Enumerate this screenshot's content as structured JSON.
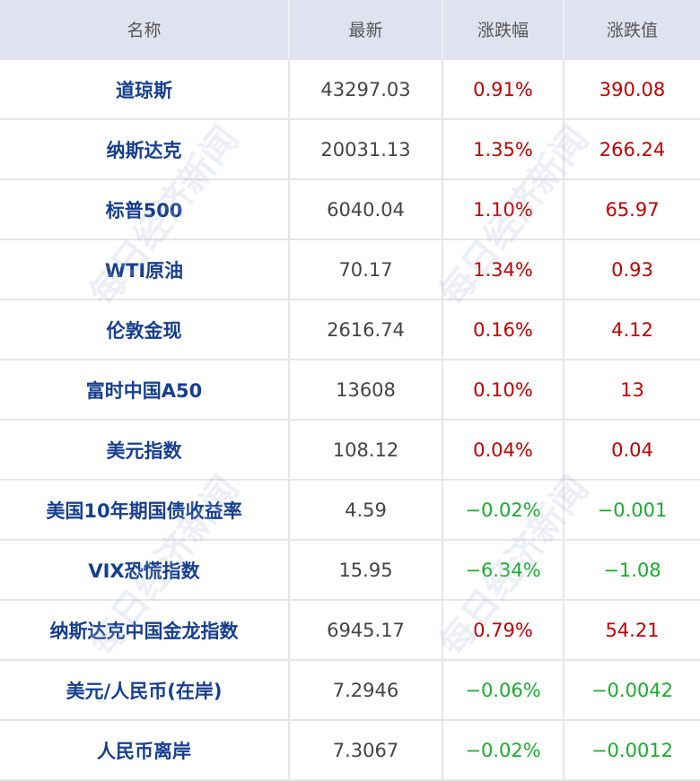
{
  "watermark": "每日经济新闻",
  "colors": {
    "header_bg": "#dfe3f0",
    "name": "#173f8f",
    "up": "#c00000",
    "down": "#1aac2e"
  },
  "headers": [
    "名称",
    "最新",
    "涨跌幅",
    "涨跌值"
  ],
  "rows": [
    {
      "name": "道琼斯",
      "last": "43297.03",
      "pct": "0.91%",
      "chg": "390.08",
      "dir": "up"
    },
    {
      "name": "纳斯达克",
      "last": "20031.13",
      "pct": "1.35%",
      "chg": "266.24",
      "dir": "up"
    },
    {
      "name": "标普500",
      "last": "6040.04",
      "pct": "1.10%",
      "chg": "65.97",
      "dir": "up"
    },
    {
      "name": "WTI原油",
      "last": "70.17",
      "pct": "1.34%",
      "chg": "0.93",
      "dir": "up"
    },
    {
      "name": "伦敦金现",
      "last": "2616.74",
      "pct": "0.16%",
      "chg": "4.12",
      "dir": "up"
    },
    {
      "name": "富时中国A50",
      "last": "13608",
      "pct": "0.10%",
      "chg": "13",
      "dir": "up"
    },
    {
      "name": "美元指数",
      "last": "108.12",
      "pct": "0.04%",
      "chg": "0.04",
      "dir": "up"
    },
    {
      "name": "美国10年期国债收益率",
      "last": "4.59",
      "pct": "−0.02%",
      "chg": "−0.001",
      "dir": "down"
    },
    {
      "name": "VIX恐慌指数",
      "last": "15.95",
      "pct": "−6.34%",
      "chg": "−1.08",
      "dir": "down"
    },
    {
      "name": "纳斯达克中国金龙指数",
      "last": "6945.17",
      "pct": "0.79%",
      "chg": "54.21",
      "dir": "up"
    },
    {
      "name": "美元/人民币(在岸)",
      "last": "7.2946",
      "pct": "−0.06%",
      "chg": "−0.0042",
      "dir": "down"
    },
    {
      "name": "人民币离岸",
      "last": "7.3067",
      "pct": "−0.02%",
      "chg": "−0.0012",
      "dir": "down"
    }
  ]
}
